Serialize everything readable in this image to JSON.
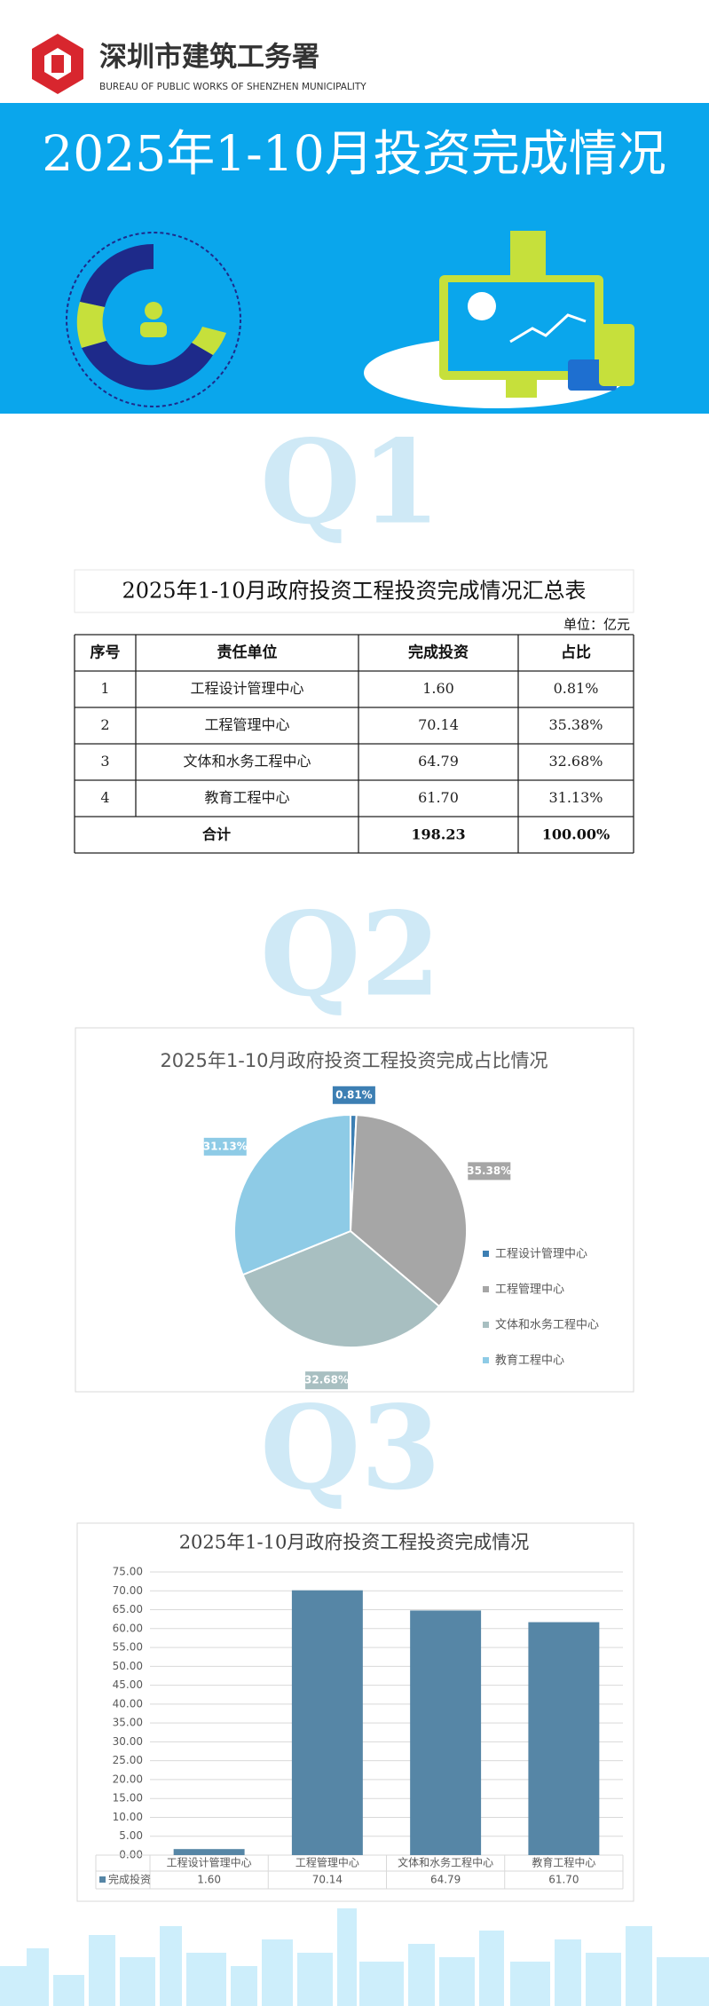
{
  "header": {
    "org_name": "深圳市建筑工务署",
    "org_name_en": "BUREAU OF PUBLIC WORKS OF SHENZHEN MUNICIPALITY",
    "title": "2025年1-10月投资完成情况"
  },
  "sections": [
    "Q1",
    "Q2",
    "Q3"
  ],
  "table": {
    "title": "2025年1-10月政府投资工程投资完成情况汇总表",
    "unit": "单位：亿元",
    "columns": [
      "序号",
      "责任单位",
      "完成投资",
      "占比"
    ],
    "rows": [
      [
        "1",
        "工程设计管理中心",
        "1.60",
        "0.81%"
      ],
      [
        "2",
        "工程管理中心",
        "70.14",
        "35.38%"
      ],
      [
        "3",
        "文体和水务工程中心",
        "64.79",
        "32.68%"
      ],
      [
        "4",
        "教育工程中心",
        "61.70",
        "31.13%"
      ]
    ],
    "total": [
      "合计",
      "198.23",
      "100.00%"
    ]
  },
  "chart_data": [
    {
      "type": "pie",
      "title": "2025年1-10月政府投资工程投资完成占比情况",
      "categories": [
        "工程设计管理中心",
        "工程管理中心",
        "文体和水务工程中心",
        "教育工程中心"
      ],
      "values": [
        0.81,
        35.38,
        32.68,
        31.13
      ],
      "value_labels": [
        "0.81%",
        "35.38%",
        "32.68%",
        "31.13%"
      ],
      "colors": [
        "#3d7fb3",
        "#a6a6a6",
        "#a8bfc1",
        "#8ecbe6"
      ],
      "legend": "right"
    },
    {
      "type": "bar",
      "title": "2025年1-10月政府投资工程投资完成情况",
      "categories": [
        "工程设计管理中心",
        "工程管理中心",
        "文体和水务工程中心",
        "教育工程中心"
      ],
      "series": [
        {
          "name": "完成投资",
          "color": "#5686a6",
          "values": [
            1.6,
            70.14,
            64.79,
            61.7
          ],
          "value_labels": [
            "1.60",
            "70.14",
            "64.79",
            "61.70"
          ]
        }
      ],
      "ylim": [
        0,
        75
      ],
      "yticks": [
        {
          "value": 0,
          "label": "0.00"
        },
        {
          "value": 5,
          "label": "5.00"
        },
        {
          "value": 10,
          "label": "10.00"
        },
        {
          "value": 15,
          "label": "15.00"
        },
        {
          "value": 20,
          "label": "20.00"
        },
        {
          "value": 25,
          "label": "25.00"
        },
        {
          "value": 30,
          "label": "30.00"
        },
        {
          "value": 35,
          "label": "35.00"
        },
        {
          "value": 40,
          "label": "40.00"
        },
        {
          "value": 45,
          "label": "45.00"
        },
        {
          "value": 50,
          "label": "50.00"
        },
        {
          "value": 55,
          "label": "55.00"
        },
        {
          "value": 60,
          "label": "60.00"
        },
        {
          "value": 65,
          "label": "65.00"
        },
        {
          "value": 70,
          "label": "70.00"
        },
        {
          "value": 75,
          "label": "75.00"
        }
      ],
      "grid": true
    }
  ]
}
